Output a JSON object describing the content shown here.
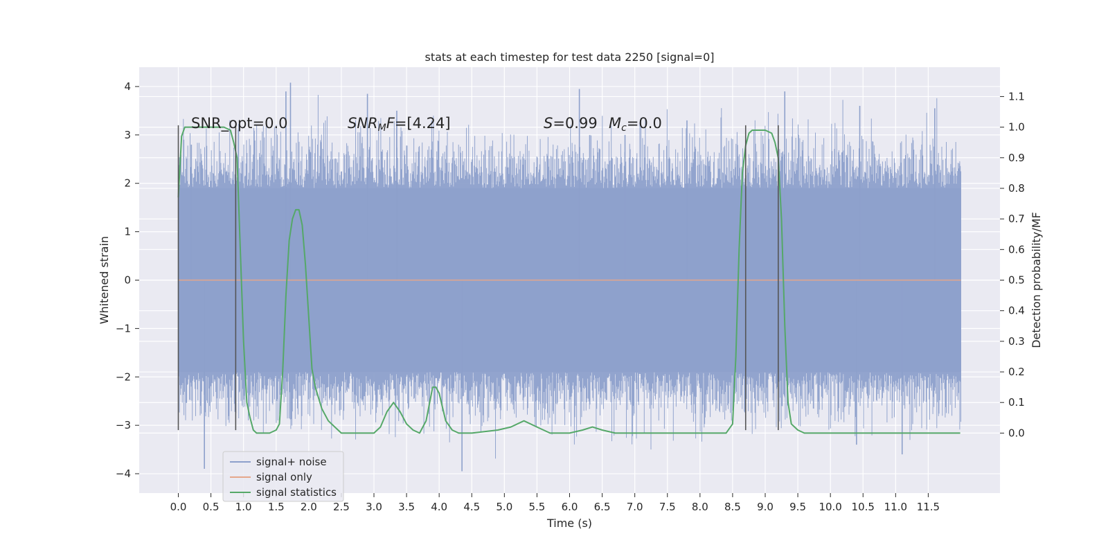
{
  "chart_data": {
    "type": "line",
    "title": "stats at each timestep for test data 2250 [signal=0]",
    "xlabel": "Time (s)",
    "ylabel": "Whitened strain",
    "ylabel_right": "Detection probability/MF",
    "xlim": [
      -0.6,
      12.6
    ],
    "ylim": [
      -4.4,
      4.4
    ],
    "ylim_right": [
      -0.196,
      1.196
    ],
    "x_ticks": [
      0.0,
      0.5,
      1.0,
      1.5,
      2.0,
      2.5,
      3.0,
      3.5,
      4.0,
      4.5,
      5.0,
      5.5,
      6.0,
      6.5,
      7.0,
      7.5,
      8.0,
      8.5,
      9.0,
      9.5,
      10.0,
      10.5,
      11.0,
      11.5
    ],
    "x_tick_labels": [
      "0.0",
      "0.5",
      "1.0",
      "1.5",
      "2.0",
      "2.5",
      "3.0",
      "3.5",
      "4.0",
      "4.5",
      "5.0",
      "5.5",
      "6.0",
      "6.5",
      "7.0",
      "7.5",
      "8.0",
      "8.5",
      "9.0",
      "9.5",
      "10.0",
      "10.5",
      "11.0",
      "11.5"
    ],
    "y_ticks": [
      4,
      3,
      2,
      1,
      0,
      -1,
      -2,
      -3,
      -4
    ],
    "y_tick_labels": [
      "4",
      "3",
      "2",
      "1",
      "0",
      "−1",
      "−2",
      "−3",
      "−4"
    ],
    "y_ticks_right": [
      1.1,
      1.0,
      0.9,
      0.8,
      0.7,
      0.6,
      0.5,
      0.4,
      0.3,
      0.2,
      0.1,
      0.0
    ],
    "y_tick_labels_right": [
      "1.1",
      "1.0",
      "0.9",
      "0.8",
      "0.7",
      "0.6",
      "0.5",
      "0.4",
      "0.3",
      "0.2",
      "0.1",
      "0.0"
    ],
    "grid": true,
    "legend_position": "lower-left",
    "annotations": {
      "snr_opt": "SNR_opt=0.0",
      "snr_mf": [
        "SNR",
        "M",
        "F=[4.24]"
      ],
      "stat": [
        "S",
        "=0.99"
      ],
      "mc": [
        "M",
        "c",
        "=0.0"
      ]
    },
    "series": [
      {
        "name": "signal+ noise",
        "axis": "left",
        "color": "#8da0cb",
        "style": "noise",
        "x_range": [
          0.0,
          12.0
        ],
        "core_amplitude": 1.9,
        "max_amplitude": 4.1,
        "sample_spikes": [
          {
            "x": 0.2,
            "y": 2.8
          },
          {
            "x": 1.65,
            "y": 3.9
          },
          {
            "x": 1.72,
            "y": 4.08
          },
          {
            "x": 2.9,
            "y": 3.85
          },
          {
            "x": 3.35,
            "y": 3.5
          },
          {
            "x": 6.15,
            "y": 3.95
          },
          {
            "x": 6.85,
            "y": 3.0
          },
          {
            "x": 7.8,
            "y": 3.3
          },
          {
            "x": 9.3,
            "y": 3.9
          },
          {
            "x": 10.45,
            "y": 3.6
          },
          {
            "x": 11.6,
            "y": 3.55
          },
          {
            "x": 0.4,
            "y": -3.9
          },
          {
            "x": 4.35,
            "y": -3.95
          },
          {
            "x": 11.1,
            "y": -3.6
          },
          {
            "x": 10.4,
            "y": -3.4
          }
        ]
      },
      {
        "name": "signal only",
        "axis": "left",
        "color": "#e5a68a",
        "x": [
          0.0,
          12.0
        ],
        "y": [
          0.0,
          0.0
        ]
      },
      {
        "name": "signal statistics",
        "axis": "right",
        "color": "#55a868",
        "x": [
          0.0,
          0.05,
          0.1,
          0.2,
          0.3,
          0.5,
          0.7,
          0.8,
          0.85,
          0.9,
          0.95,
          1.0,
          1.05,
          1.1,
          1.15,
          1.2,
          1.4,
          1.5,
          1.55,
          1.6,
          1.65,
          1.7,
          1.75,
          1.8,
          1.85,
          1.9,
          1.95,
          2.0,
          2.05,
          2.1,
          2.2,
          2.3,
          2.4,
          2.5,
          2.7,
          3.0,
          3.1,
          3.2,
          3.3,
          3.4,
          3.5,
          3.6,
          3.7,
          3.8,
          3.9,
          3.95,
          4.0,
          4.1,
          4.2,
          4.3,
          4.5,
          4.9,
          5.1,
          5.3,
          5.5,
          5.7,
          6.0,
          6.2,
          6.35,
          6.5,
          6.7,
          7.0,
          7.5,
          8.0,
          8.4,
          8.5,
          8.55,
          8.6,
          8.65,
          8.7,
          8.75,
          8.8,
          8.9,
          9.0,
          9.1,
          9.15,
          9.2,
          9.25,
          9.3,
          9.35,
          9.4,
          9.5,
          9.6,
          10.0,
          10.5,
          10.8,
          11.0,
          11.5,
          11.99
        ],
        "y": [
          0.77,
          0.97,
          1.0,
          1.0,
          1.0,
          1.0,
          1.0,
          0.99,
          0.95,
          0.9,
          0.6,
          0.3,
          0.1,
          0.05,
          0.01,
          0.0,
          0.0,
          0.01,
          0.03,
          0.2,
          0.45,
          0.63,
          0.7,
          0.73,
          0.73,
          0.68,
          0.55,
          0.38,
          0.21,
          0.15,
          0.08,
          0.04,
          0.02,
          0.0,
          0.0,
          0.0,
          0.02,
          0.07,
          0.1,
          0.07,
          0.03,
          0.01,
          0.0,
          0.04,
          0.15,
          0.15,
          0.13,
          0.04,
          0.01,
          0.0,
          0.0,
          0.01,
          0.02,
          0.04,
          0.02,
          0.0,
          0.0,
          0.01,
          0.02,
          0.01,
          0.0,
          0.0,
          0.0,
          0.0,
          0.0,
          0.03,
          0.25,
          0.6,
          0.85,
          0.94,
          0.98,
          0.99,
          0.99,
          0.99,
          0.98,
          0.95,
          0.9,
          0.7,
          0.35,
          0.1,
          0.03,
          0.01,
          0.0,
          0.0,
          0.0,
          0.0,
          0.0,
          0.0,
          0.0
        ]
      }
    ],
    "vertical_markers": [
      {
        "x": 0.0,
        "y": [
          -3.1,
          3.2
        ]
      },
      {
        "x": 0.88,
        "y": [
          -3.1,
          3.2
        ]
      },
      {
        "x": 8.7,
        "y": [
          -3.1,
          3.2
        ]
      },
      {
        "x": 9.2,
        "y": [
          -3.1,
          3.2
        ]
      }
    ]
  }
}
